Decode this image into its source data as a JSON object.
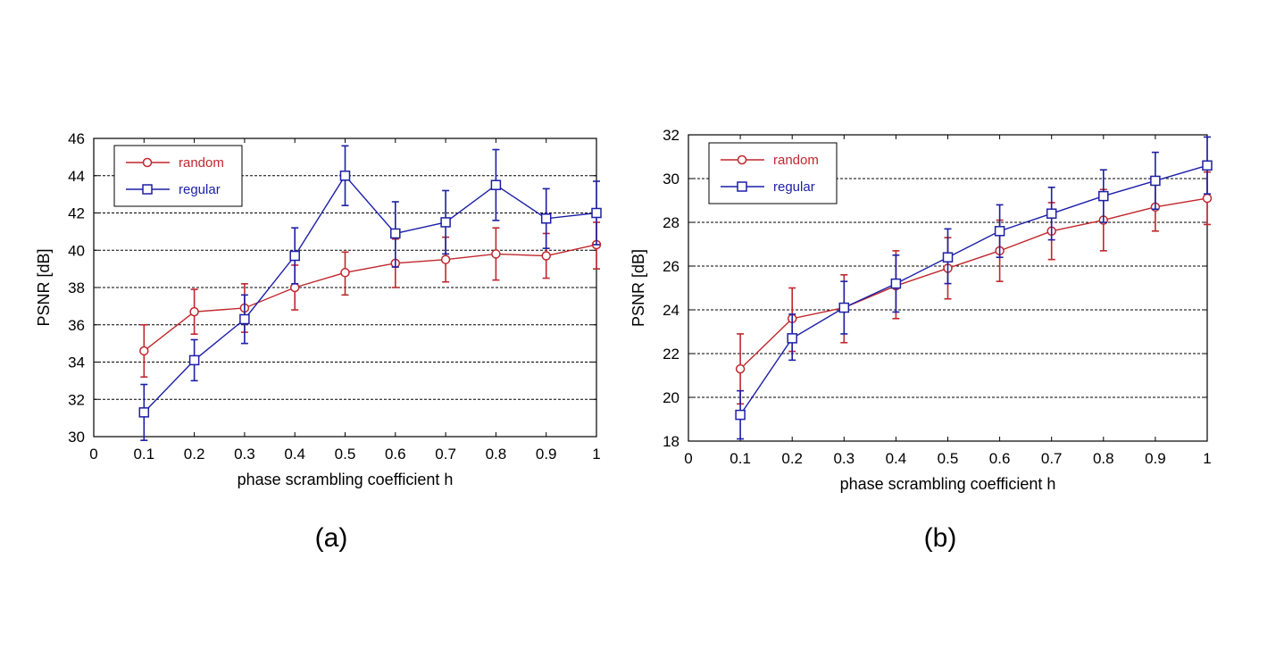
{
  "chart_data": [
    {
      "type": "line",
      "panel_label": "(a)",
      "xlabel": "phase scrambling coefficient  h",
      "ylabel": "PSNR [dB]",
      "xlim": [
        0,
        1
      ],
      "ylim": [
        30,
        46
      ],
      "xticks": [
        0,
        0.1,
        0.2,
        0.3,
        0.4,
        0.5,
        0.6,
        0.7,
        0.8,
        0.9,
        1
      ],
      "xtick_labels": [
        "0",
        "0.1",
        "0.2",
        "0.3",
        "0.4",
        "0.5",
        "0.6",
        "0.7",
        "0.8",
        "0.9",
        "1"
      ],
      "yticks": [
        30,
        32,
        34,
        36,
        38,
        40,
        42,
        44,
        46
      ],
      "ytick_labels": [
        "30",
        "32",
        "34",
        "36",
        "38",
        "40",
        "42",
        "44",
        "46"
      ],
      "grid": "horizontal dashed",
      "legend_position": "top-left",
      "x": [
        0.1,
        0.2,
        0.3,
        0.4,
        0.5,
        0.6,
        0.7,
        0.8,
        0.9,
        1.0
      ],
      "series": [
        {
          "name": "random",
          "color": "#c0272d",
          "marker": "circle",
          "values": [
            34.6,
            36.7,
            36.9,
            38.0,
            38.8,
            39.3,
            39.5,
            39.8,
            39.7,
            40.3
          ],
          "err_low": [
            33.2,
            35.5,
            35.6,
            36.8,
            37.6,
            38.0,
            38.3,
            38.4,
            38.5,
            39.0
          ],
          "err_high": [
            36.0,
            37.9,
            38.2,
            39.2,
            39.9,
            40.6,
            40.7,
            41.2,
            40.9,
            41.5
          ]
        },
        {
          "name": "regular",
          "color": "#1c1fa6",
          "marker": "square",
          "values": [
            31.3,
            34.1,
            36.3,
            39.7,
            44.0,
            40.9,
            41.5,
            43.5,
            41.7,
            42.0
          ],
          "err_low": [
            29.8,
            33.0,
            35.0,
            38.2,
            42.4,
            39.1,
            39.8,
            41.6,
            40.1,
            40.3
          ],
          "err_high": [
            32.8,
            35.2,
            37.6,
            41.2,
            45.6,
            42.6,
            43.2,
            45.4,
            43.3,
            43.7
          ]
        }
      ]
    },
    {
      "type": "line",
      "panel_label": "(b)",
      "xlabel": "phase scrambling coefficient  h",
      "ylabel": "PSNR [dB]",
      "xlim": [
        0,
        1
      ],
      "ylim": [
        18,
        32
      ],
      "xticks": [
        0,
        0.1,
        0.2,
        0.3,
        0.4,
        0.5,
        0.6,
        0.7,
        0.8,
        0.9,
        1
      ],
      "xtick_labels": [
        "0",
        "0.1",
        "0.2",
        "0.3",
        "0.4",
        "0.5",
        "0.6",
        "0.7",
        "0.8",
        "0.9",
        "1"
      ],
      "yticks": [
        18,
        20,
        22,
        24,
        26,
        28,
        30,
        32
      ],
      "ytick_labels": [
        "18",
        "20",
        "22",
        "24",
        "26",
        "28",
        "30",
        "32"
      ],
      "grid": "horizontal dashed",
      "legend_position": "top-left",
      "x": [
        0.1,
        0.2,
        0.3,
        0.4,
        0.5,
        0.6,
        0.7,
        0.8,
        0.9,
        1.0
      ],
      "series": [
        {
          "name": "random",
          "color": "#c0272d",
          "marker": "circle",
          "values": [
            21.3,
            23.6,
            24.1,
            25.1,
            25.9,
            26.7,
            27.6,
            28.1,
            28.7,
            29.1
          ],
          "err_low": [
            19.7,
            22.1,
            22.5,
            23.6,
            24.5,
            25.3,
            26.3,
            26.7,
            27.6,
            27.9
          ],
          "err_high": [
            22.9,
            25.0,
            25.6,
            26.7,
            27.3,
            28.1,
            28.9,
            29.5,
            29.8,
            30.3
          ]
        },
        {
          "name": "regular",
          "color": "#1c1fa6",
          "marker": "square",
          "values": [
            19.2,
            22.7,
            24.1,
            25.2,
            26.4,
            27.6,
            28.4,
            29.2,
            29.9,
            30.6
          ],
          "err_low": [
            18.1,
            21.7,
            22.9,
            23.9,
            25.2,
            26.4,
            27.2,
            28.0,
            28.6,
            29.3
          ],
          "err_high": [
            20.3,
            23.8,
            25.3,
            26.5,
            27.7,
            28.8,
            29.6,
            30.4,
            31.2,
            31.9
          ]
        }
      ]
    }
  ]
}
